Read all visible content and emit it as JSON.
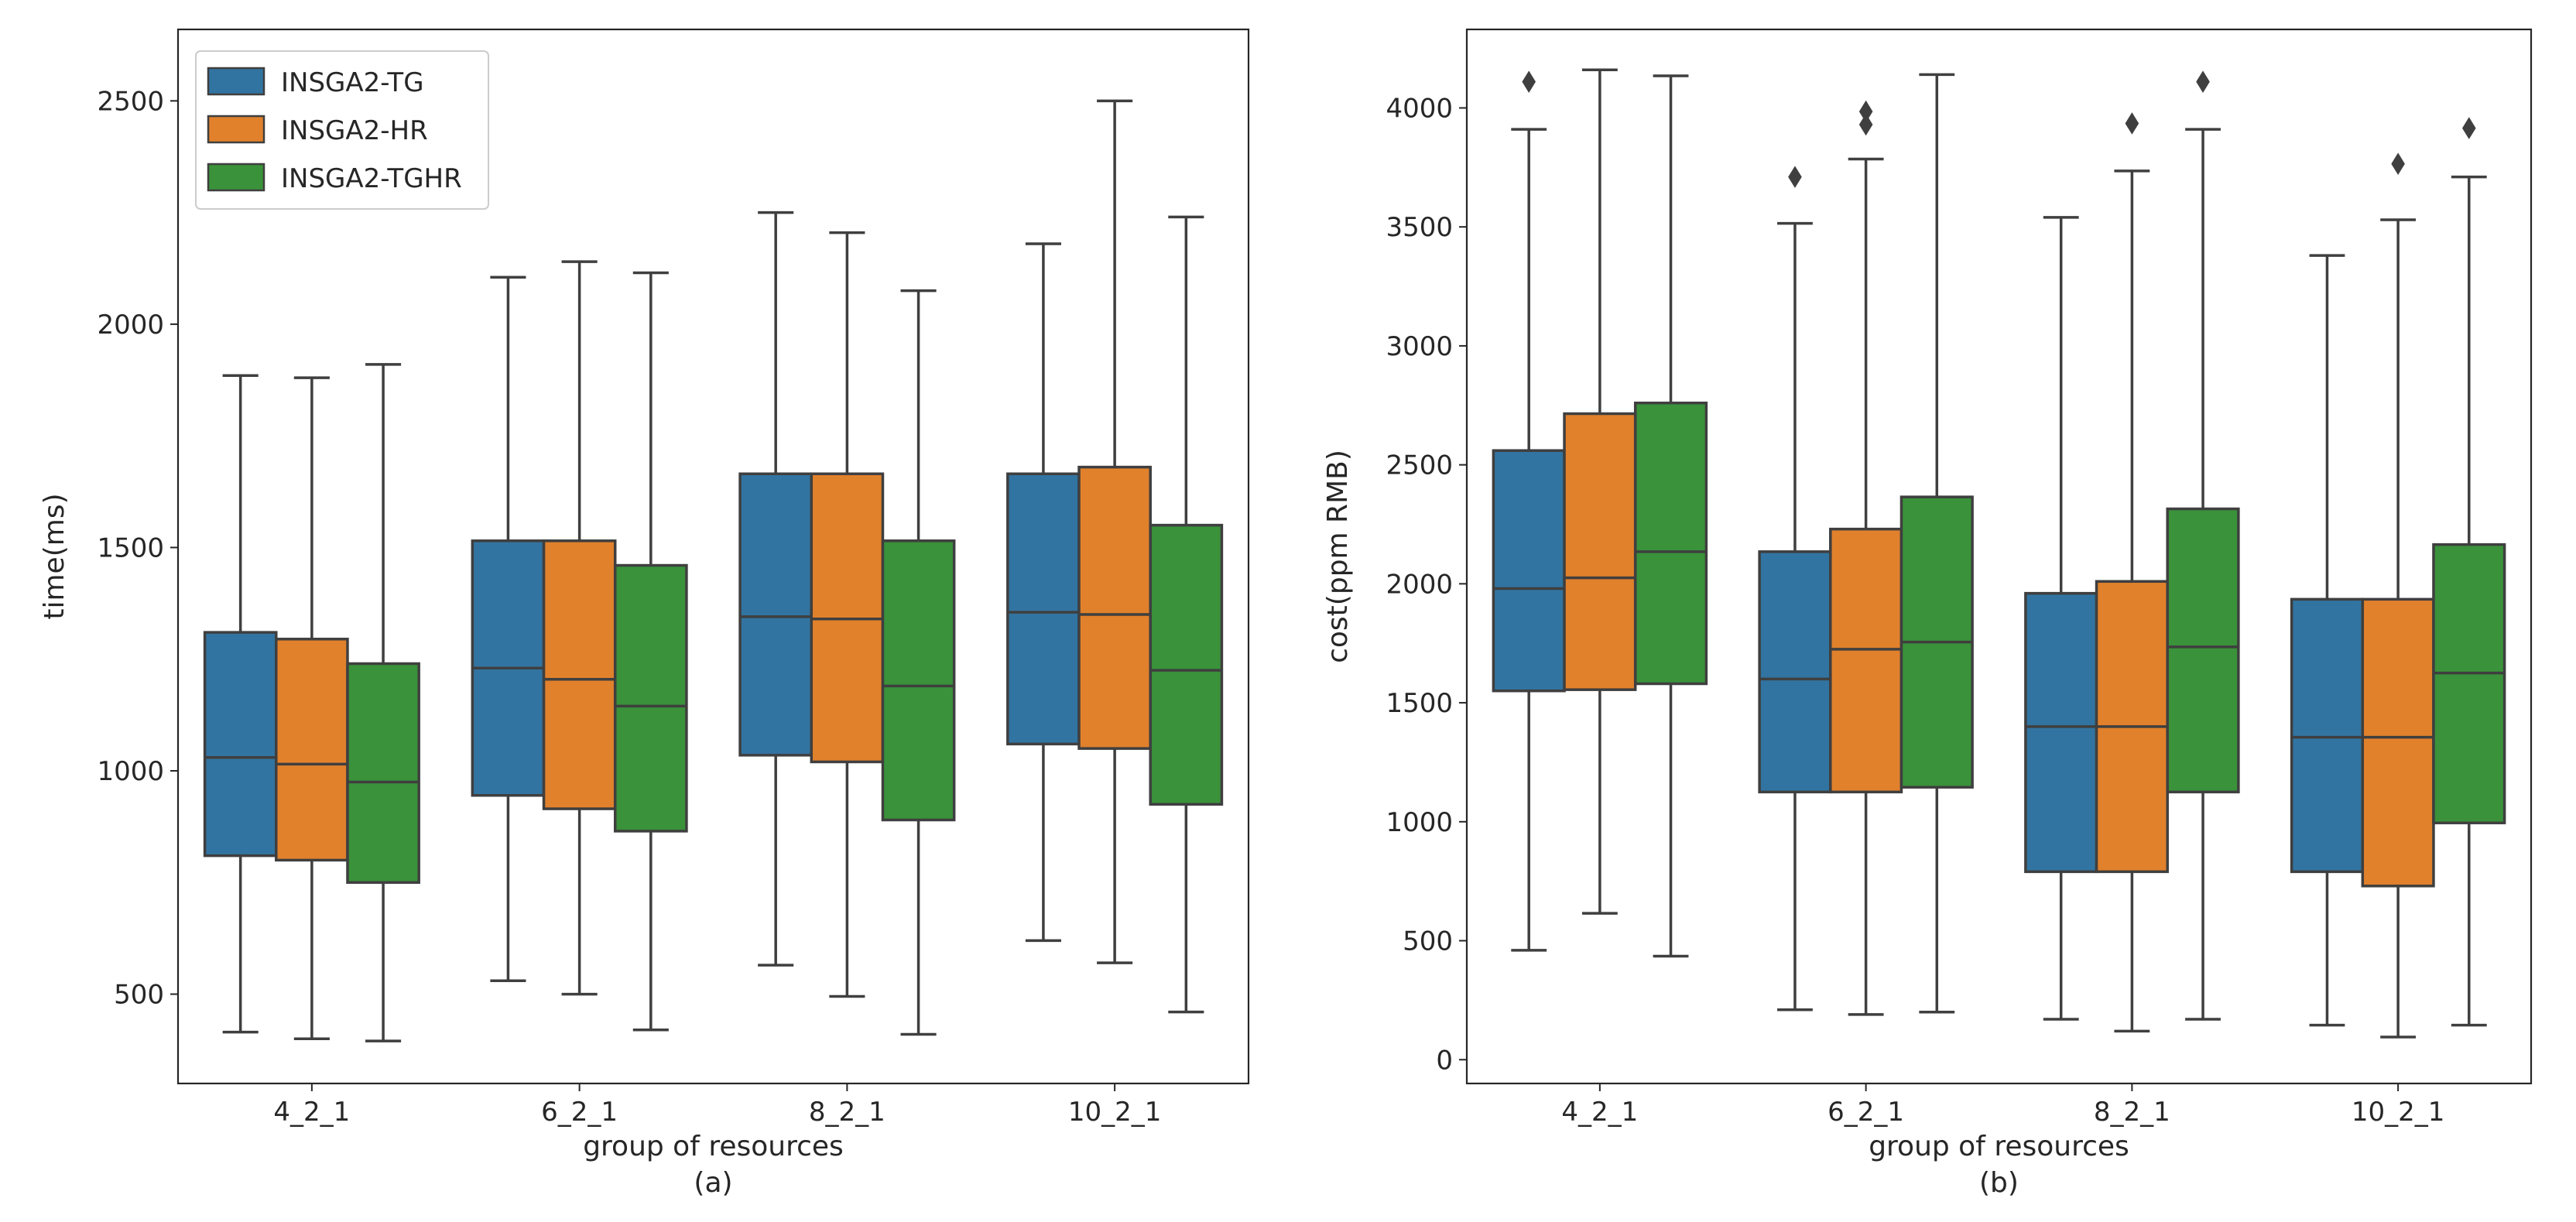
{
  "legend": {
    "entries": [
      {
        "name": "INSGA2-TG",
        "color": "#3274a1"
      },
      {
        "name": "INSGA2-HR",
        "color": "#e1812c"
      },
      {
        "name": "INSGA2-TGHR",
        "color": "#3a923a"
      }
    ],
    "placement": "upper-left of panel (a)"
  },
  "chart_data": [
    {
      "type": "box",
      "panel_label": "(a)",
      "xlabel": "group of resources",
      "ylabel": "time(ms)",
      "categories": [
        "4_2_1",
        "6_2_1",
        "8_2_1",
        "10_2_1"
      ],
      "ylim": [
        300,
        2660
      ],
      "yticks": [
        500,
        1000,
        1500,
        2000,
        2500
      ],
      "series": [
        {
          "name": "INSGA2-TG",
          "color": "#3274a1",
          "boxes": [
            {
              "whislo": 415,
              "q1": 810,
              "med": 1030,
              "q3": 1310,
              "whishi": 1885,
              "fliers": []
            },
            {
              "whislo": 530,
              "q1": 945,
              "med": 1230,
              "q3": 1515,
              "whishi": 2105,
              "fliers": []
            },
            {
              "whislo": 565,
              "q1": 1035,
              "med": 1345,
              "q3": 1665,
              "whishi": 2250,
              "fliers": []
            },
            {
              "whislo": 620,
              "q1": 1060,
              "med": 1355,
              "q3": 1665,
              "whishi": 2180,
              "fliers": []
            }
          ]
        },
        {
          "name": "INSGA2-HR",
          "color": "#e1812c",
          "boxes": [
            {
              "whislo": 400,
              "q1": 800,
              "med": 1015,
              "q3": 1295,
              "whishi": 1880,
              "fliers": []
            },
            {
              "whislo": 500,
              "q1": 915,
              "med": 1205,
              "q3": 1515,
              "whishi": 2140,
              "fliers": []
            },
            {
              "whislo": 495,
              "q1": 1020,
              "med": 1340,
              "q3": 1665,
              "whishi": 2205,
              "fliers": []
            },
            {
              "whislo": 570,
              "q1": 1050,
              "med": 1350,
              "q3": 1680,
              "whishi": 2500,
              "fliers": []
            }
          ]
        },
        {
          "name": "INSGA2-TGHR",
          "color": "#3a923a",
          "boxes": [
            {
              "whislo": 395,
              "q1": 750,
              "med": 975,
              "q3": 1240,
              "whishi": 1910,
              "fliers": []
            },
            {
              "whislo": 420,
              "q1": 865,
              "med": 1145,
              "q3": 1460,
              "whishi": 2115,
              "fliers": []
            },
            {
              "whislo": 410,
              "q1": 890,
              "med": 1190,
              "q3": 1515,
              "whishi": 2075,
              "fliers": []
            },
            {
              "whislo": 460,
              "q1": 925,
              "med": 1225,
              "q3": 1550,
              "whishi": 2240,
              "fliers": []
            }
          ]
        }
      ]
    },
    {
      "type": "box",
      "panel_label": "(b)",
      "xlabel": "group of resources",
      "ylabel": "cost(ppm RMB)",
      "categories": [
        "4_2_1",
        "6_2_1",
        "8_2_1",
        "10_2_1"
      ],
      "ylim": [
        -100,
        4330
      ],
      "yticks": [
        0,
        500,
        1000,
        1500,
        2000,
        2500,
        3000,
        3500,
        4000
      ],
      "series": [
        {
          "name": "INSGA2-TG",
          "color": "#3274a1",
          "boxes": [
            {
              "whislo": 460,
              "q1": 1550,
              "med": 1980,
              "q3": 2560,
              "whishi": 3910,
              "fliers": [
                4110
              ]
            },
            {
              "whislo": 210,
              "q1": 1125,
              "med": 1600,
              "q3": 2135,
              "whishi": 3515,
              "fliers": [
                3710
              ]
            },
            {
              "whislo": 170,
              "q1": 790,
              "med": 1400,
              "q3": 1960,
              "whishi": 3540,
              "fliers": []
            },
            {
              "whislo": 145,
              "q1": 790,
              "med": 1355,
              "q3": 1935,
              "whishi": 3380,
              "fliers": []
            }
          ]
        },
        {
          "name": "INSGA2-HR",
          "color": "#e1812c",
          "boxes": [
            {
              "whislo": 615,
              "q1": 1555,
              "med": 2025,
              "q3": 2715,
              "whishi": 4160,
              "fliers": []
            },
            {
              "whislo": 190,
              "q1": 1125,
              "med": 1725,
              "q3": 2230,
              "whishi": 3785,
              "fliers": [
                3930,
                3985
              ]
            },
            {
              "whislo": 120,
              "q1": 790,
              "med": 1400,
              "q3": 2010,
              "whishi": 3735,
              "fliers": [
                3935
              ]
            },
            {
              "whislo": 95,
              "q1": 730,
              "med": 1355,
              "q3": 1935,
              "whishi": 3530,
              "fliers": [
                3765
              ]
            }
          ]
        },
        {
          "name": "INSGA2-TGHR",
          "color": "#3a923a",
          "boxes": [
            {
              "whislo": 435,
              "q1": 1580,
              "med": 2135,
              "q3": 2760,
              "whishi": 4135,
              "fliers": []
            },
            {
              "whislo": 200,
              "q1": 1145,
              "med": 1755,
              "q3": 2365,
              "whishi": 4140,
              "fliers": []
            },
            {
              "whislo": 170,
              "q1": 1125,
              "med": 1735,
              "q3": 2315,
              "whishi": 3910,
              "fliers": [
                4110
              ]
            },
            {
              "whislo": 145,
              "q1": 995,
              "med": 1625,
              "q3": 2165,
              "whishi": 3710,
              "fliers": [
                3915
              ]
            }
          ]
        }
      ]
    }
  ]
}
